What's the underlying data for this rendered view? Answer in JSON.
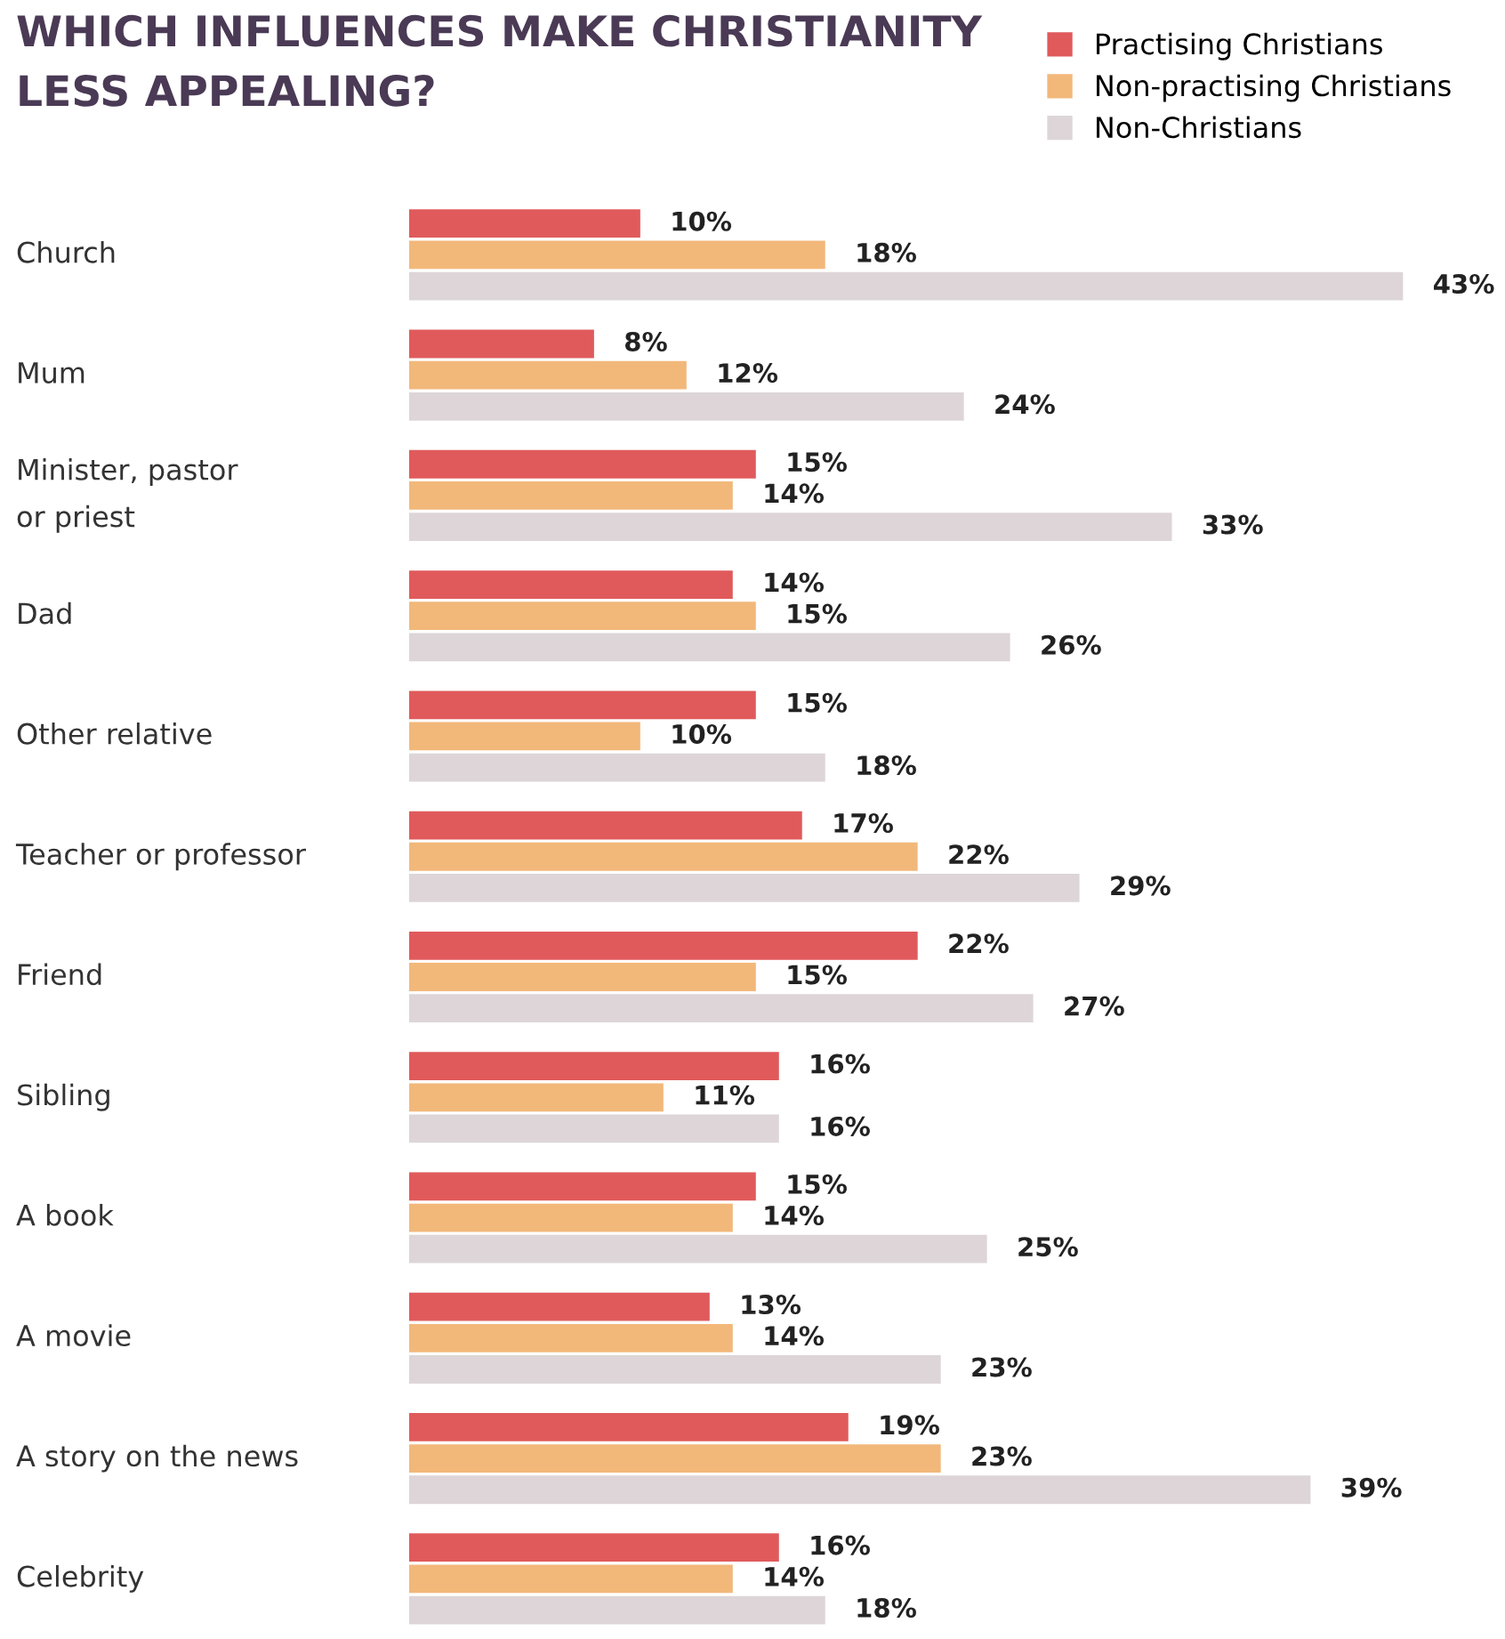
{
  "chart_data": {
    "type": "bar",
    "orientation": "horizontal",
    "title": "WHICH INFLUENCES MAKE CHRISTIANITY\nLESS APPEALING?",
    "categories": [
      "Church",
      "Mum",
      "Minister, pastor\nor priest",
      "Dad",
      "Other relative",
      "Teacher or professor",
      "Friend",
      "Sibling",
      "A book",
      "A movie",
      "A story on the news",
      "Celebrity"
    ],
    "series": [
      {
        "name": "Practising Christians",
        "color": "#e05a5b",
        "values": [
          10,
          8,
          15,
          14,
          15,
          17,
          22,
          16,
          15,
          13,
          19,
          16
        ],
        "value_labels": [
          "10%",
          "8%",
          "15%",
          "14%",
          "15%",
          "17%",
          "22%",
          "16%",
          "15%",
          "13%",
          "19%",
          "16%"
        ]
      },
      {
        "name": "Non-practising Christians",
        "color": "#f2b87a",
        "values": [
          18,
          12,
          14,
          15,
          10,
          22,
          15,
          11,
          14,
          14,
          23,
          14
        ],
        "value_labels": [
          "18%",
          "12%",
          "14%",
          "15%",
          "10%",
          "22%",
          "15%",
          "11%",
          "14%",
          "14%",
          "23%",
          "14%"
        ]
      },
      {
        "name": "Non-Christians",
        "color": "#ddd5d7",
        "values": [
          43,
          24,
          33,
          26,
          18,
          29,
          27,
          16,
          25,
          23,
          39,
          18
        ],
        "value_labels": [
          "43%",
          "24%",
          "33%",
          "26%",
          "18%",
          "29%",
          "27%",
          "16%",
          "25%",
          "23%",
          "39%",
          "18%"
        ]
      }
    ],
    "legend": "top right"
  }
}
